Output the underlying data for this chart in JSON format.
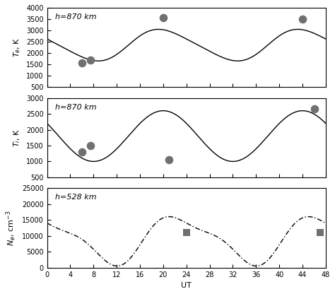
{
  "panel1": {
    "label": "h=870 km",
    "ylabel": "$T_e$, K",
    "ylim": [
      500,
      4000
    ],
    "yticks": [
      500,
      1000,
      1500,
      2000,
      2500,
      3000,
      3500,
      4000
    ],
    "scatter_x": [
      6,
      7.5,
      20,
      44
    ],
    "scatter_y": [
      1550,
      1700,
      3550,
      3500
    ]
  },
  "panel2": {
    "label": "h=870 km",
    "ylabel": "$T_i$, K",
    "ylim": [
      500,
      3000
    ],
    "yticks": [
      500,
      1000,
      1500,
      2000,
      2500,
      3000
    ],
    "scatter_x": [
      6,
      7.5,
      21,
      46
    ],
    "scatter_y": [
      1300,
      1500,
      1050,
      2650
    ]
  },
  "panel3": {
    "label": "h=528 km",
    "ylabel": "$N_e$, cm$^{-3}$",
    "ylim": [
      0,
      25000
    ],
    "yticks": [
      0,
      5000,
      10000,
      15000,
      20000,
      25000
    ],
    "scatter_x": [
      24,
      47
    ],
    "scatter_y": [
      11000,
      11000
    ]
  },
  "xlim": [
    0,
    48
  ],
  "xticks": [
    0,
    4,
    8,
    12,
    16,
    20,
    24,
    28,
    32,
    36,
    40,
    44,
    48
  ],
  "xlabel": "UT",
  "line_color": "#000000",
  "scatter_color": "#707070",
  "background_color": "#ffffff",
  "figsize": [
    4.74,
    4.16
  ],
  "dpi": 100
}
